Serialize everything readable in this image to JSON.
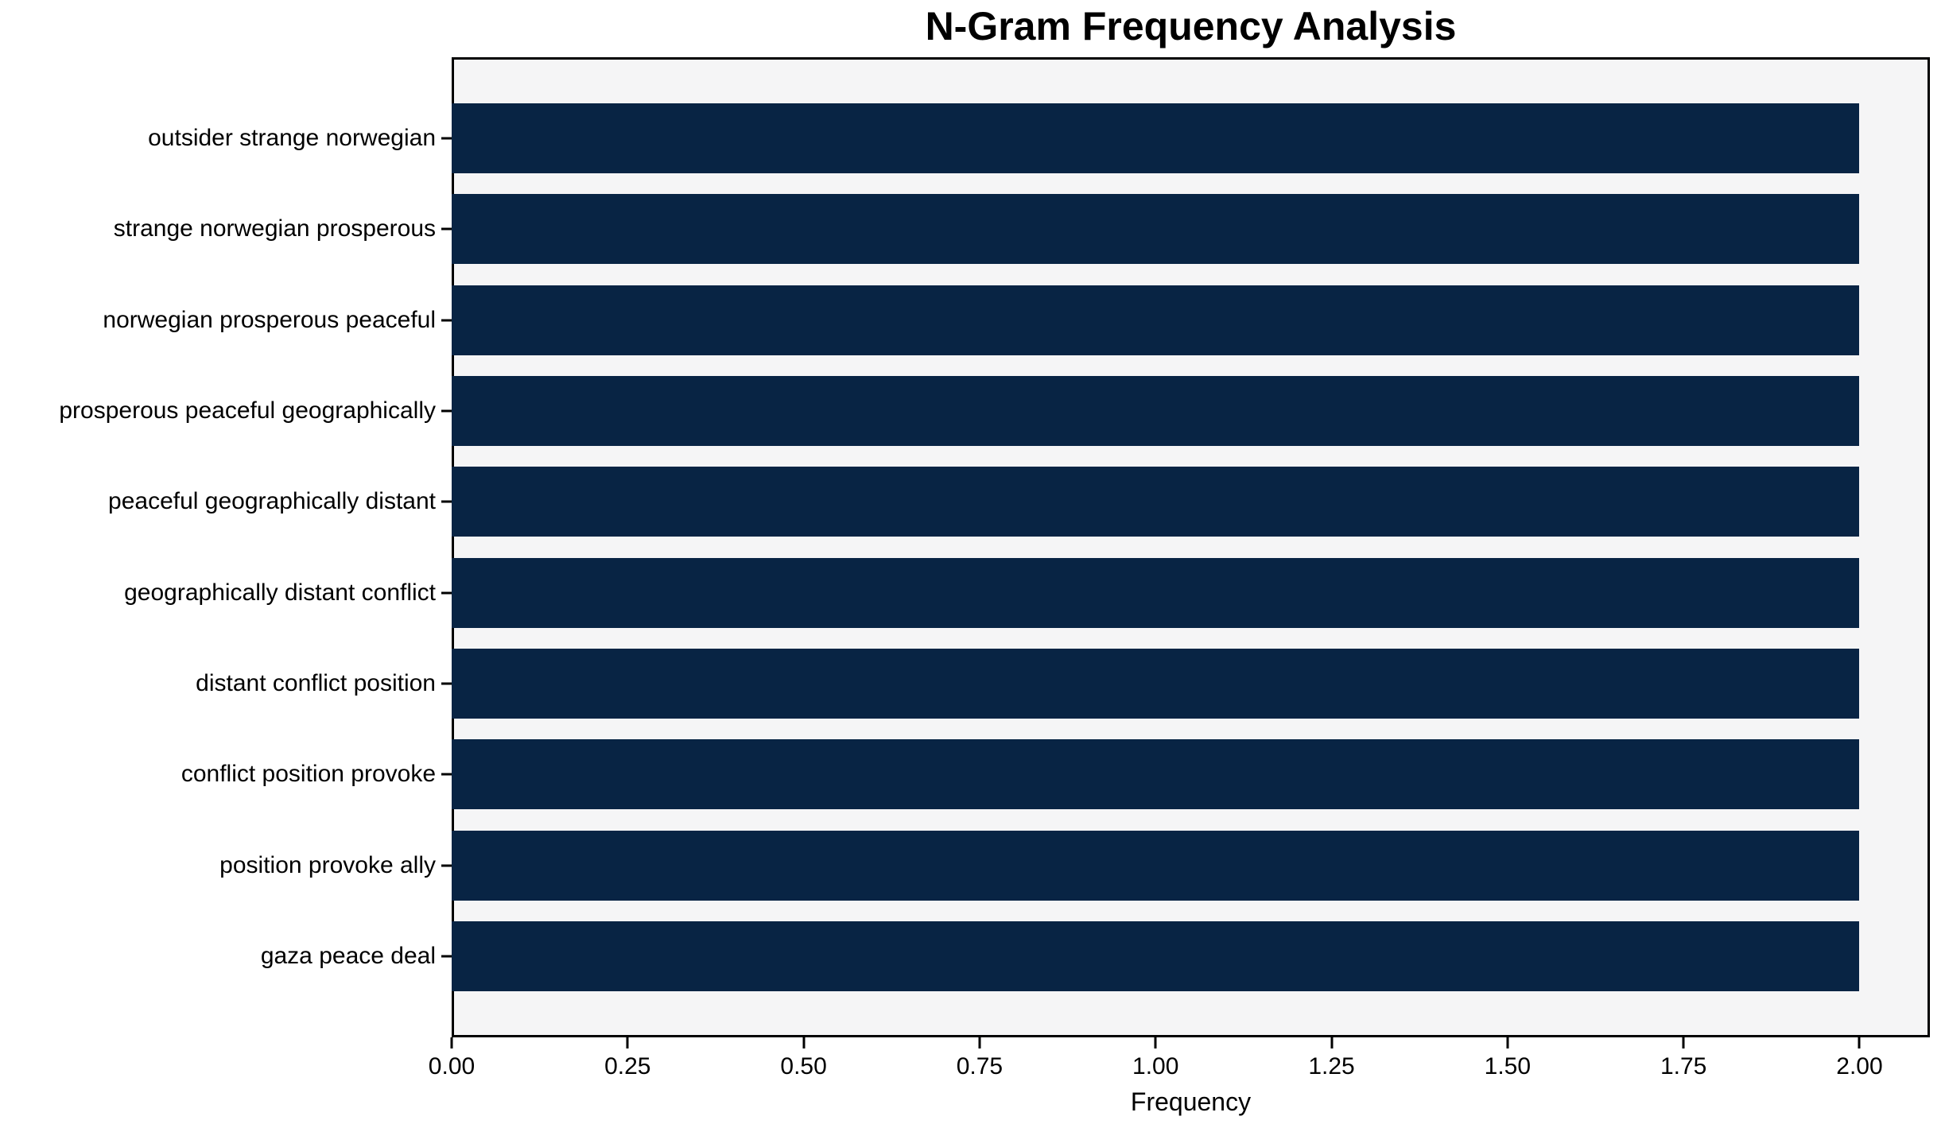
{
  "chart_data": {
    "type": "bar",
    "orientation": "horizontal",
    "title": "N-Gram Frequency Analysis",
    "xlabel": "Frequency",
    "ylabel": "",
    "categories": [
      "outsider strange norwegian",
      "strange norwegian prosperous",
      "norwegian prosperous peaceful",
      "prosperous peaceful geographically",
      "peaceful geographically distant",
      "geographically distant conflict",
      "distant conflict position",
      "conflict position provoke",
      "position provoke ally",
      "gaza peace deal"
    ],
    "values": [
      2,
      2,
      2,
      2,
      2,
      2,
      2,
      2,
      2,
      2
    ],
    "xlim": [
      0,
      2.1
    ],
    "xticks": [
      0,
      0.25,
      0.5,
      0.75,
      1.0,
      1.25,
      1.5,
      1.75,
      2.0
    ],
    "xtick_labels": [
      "0.00",
      "0.25",
      "0.50",
      "0.75",
      "1.00",
      "1.25",
      "1.50",
      "1.75",
      "2.00"
    ],
    "grid": false,
    "legend": null,
    "colors": {
      "bar": "#082444",
      "plot_background": "#f5f5f6",
      "figure_background": "#ffffff",
      "spine": "#000000",
      "text": "#000000"
    }
  }
}
